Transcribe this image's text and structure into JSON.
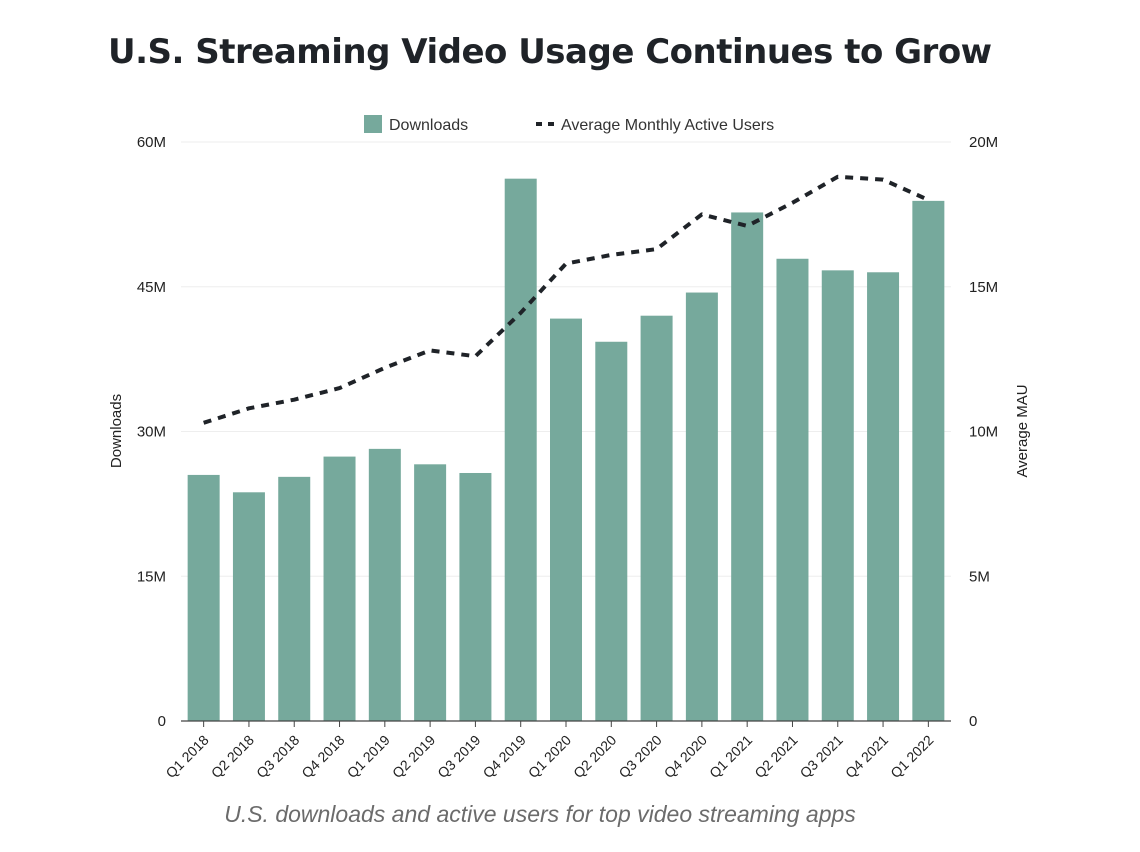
{
  "chart_data": {
    "type": "bar",
    "title": "U.S. Streaming Video Usage Continues to Grow",
    "subtitle": "U.S. downloads and active users for top video streaming apps",
    "categories": [
      "Q1 2018",
      "Q2 2018",
      "Q3 2018",
      "Q4 2018",
      "Q1 2019",
      "Q2 2019",
      "Q3 2019",
      "Q4 2019",
      "Q1 2020",
      "Q2 2020",
      "Q3 2020",
      "Q4 2020",
      "Q1 2021",
      "Q2 2021",
      "Q3 2021",
      "Q4 2021",
      "Q1 2022"
    ],
    "series": [
      {
        "name": "Downloads",
        "kind": "bar",
        "axis": "left",
        "color": "#76a99c",
        "values": [
          25.5,
          23.7,
          25.3,
          27.4,
          28.2,
          26.6,
          25.7,
          56.2,
          41.7,
          39.3,
          42.0,
          44.4,
          52.7,
          47.9,
          46.7,
          46.5,
          53.9
        ]
      },
      {
        "name": "Average Monthly Active Users",
        "kind": "line",
        "axis": "right",
        "color": "#1f2328",
        "values": [
          10.3,
          10.8,
          11.1,
          11.5,
          12.2,
          12.8,
          12.6,
          14.1,
          15.8,
          16.1,
          16.3,
          17.5,
          17.1,
          17.9,
          18.8,
          18.7,
          18.0
        ]
      }
    ],
    "y_left": {
      "label": "Downloads",
      "ylim": [
        0,
        60
      ],
      "ticks": [
        0,
        15,
        30,
        45,
        60
      ],
      "tick_labels": [
        "0",
        "15M",
        "30M",
        "45M",
        "60M"
      ]
    },
    "y_right": {
      "label": "Average MAU",
      "ylim": [
        0,
        20
      ],
      "ticks": [
        0,
        5,
        10,
        15,
        20
      ],
      "tick_labels": [
        "0",
        "5M",
        "10M",
        "15M",
        "20M"
      ]
    },
    "legend": {
      "position": "top-center",
      "entries": [
        "Downloads",
        "Average Monthly Active Users"
      ]
    },
    "grid": true
  }
}
